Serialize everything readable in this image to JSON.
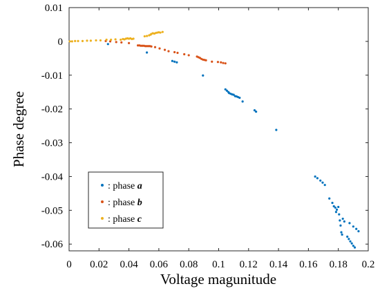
{
  "chart_data": {
    "type": "scatter",
    "xlabel": "Voltage magunitude",
    "ylabel": "Phase degree",
    "xlim": [
      0,
      0.2
    ],
    "ylim": [
      -0.062,
      0.01
    ],
    "xticks": [
      0,
      0.02,
      0.04,
      0.06,
      0.08,
      0.1,
      0.12,
      0.14,
      0.16,
      0.18,
      0.2
    ],
    "xtick_labels": [
      "0",
      "0.02",
      "0.04",
      "0.06",
      "0.08",
      "0.1",
      "0.12",
      "0.14",
      "0.16",
      "0.18",
      "0.2"
    ],
    "yticks": [
      0.01,
      0,
      -0.01,
      -0.02,
      -0.03,
      -0.04,
      -0.05,
      -0.06
    ],
    "ytick_labels": [
      "0.01",
      "0",
      "-0.01",
      "-0.02",
      "-0.03",
      "-0.04",
      "-0.05",
      "-0.06"
    ],
    "grid": false,
    "legend_position": "bottom-left",
    "series": [
      {
        "name": "phase a",
        "legend_prefix": ": phase ",
        "legend_letter": "a",
        "color": "#0072BD",
        "points": [
          [
            0.026,
            -0.0008
          ],
          [
            0.052,
            -0.0033
          ],
          [
            0.069,
            -0.0058
          ],
          [
            0.0705,
            -0.006
          ],
          [
            0.072,
            -0.0062
          ],
          [
            0.0895,
            -0.0101
          ],
          [
            0.1045,
            -0.0142
          ],
          [
            0.1055,
            -0.0146
          ],
          [
            0.1065,
            -0.015
          ],
          [
            0.107,
            -0.0153
          ],
          [
            0.108,
            -0.0155
          ],
          [
            0.109,
            -0.0157
          ],
          [
            0.11,
            -0.0158
          ],
          [
            0.111,
            -0.0162
          ],
          [
            0.112,
            -0.0163
          ],
          [
            0.113,
            -0.0165
          ],
          [
            0.114,
            -0.0167
          ],
          [
            0.116,
            -0.0178
          ],
          [
            0.124,
            -0.0204
          ],
          [
            0.125,
            -0.0208
          ],
          [
            0.1385,
            -0.0262
          ],
          [
            0.1645,
            -0.04
          ],
          [
            0.166,
            -0.0405
          ],
          [
            0.168,
            -0.0412
          ],
          [
            0.1695,
            -0.0418
          ],
          [
            0.171,
            -0.0425
          ],
          [
            0.174,
            -0.0465
          ],
          [
            0.176,
            -0.0478
          ],
          [
            0.177,
            -0.0488
          ],
          [
            0.178,
            -0.0492
          ],
          [
            0.1785,
            -0.0505
          ],
          [
            0.179,
            -0.0498
          ],
          [
            0.18,
            -0.049
          ],
          [
            0.1805,
            -0.0512
          ],
          [
            0.181,
            -0.053
          ],
          [
            0.1815,
            -0.0545
          ],
          [
            0.182,
            -0.0565
          ],
          [
            0.1825,
            -0.0572
          ],
          [
            0.183,
            -0.0525
          ],
          [
            0.184,
            -0.0533
          ],
          [
            0.186,
            -0.0578
          ],
          [
            0.187,
            -0.0585
          ],
          [
            0.188,
            -0.0592
          ],
          [
            0.189,
            -0.0598
          ],
          [
            0.19,
            -0.0605
          ],
          [
            0.191,
            -0.061
          ],
          [
            0.1875,
            -0.0538
          ],
          [
            0.19,
            -0.0548
          ],
          [
            0.192,
            -0.0555
          ],
          [
            0.1935,
            -0.0562
          ]
        ]
      },
      {
        "name": "phase b",
        "legend_prefix": ": phase ",
        "legend_letter": "b",
        "color": "#D95319",
        "points": [
          [
            0.0245,
            0.0001
          ],
          [
            0.0275,
            0.0
          ],
          [
            0.0315,
            -0.0002
          ],
          [
            0.035,
            -0.0003
          ],
          [
            0.04,
            -0.0005
          ],
          [
            0.046,
            -0.0012
          ],
          [
            0.047,
            -0.0012
          ],
          [
            0.048,
            -0.0013
          ],
          [
            0.049,
            -0.0013
          ],
          [
            0.05,
            -0.0013
          ],
          [
            0.051,
            -0.0014
          ],
          [
            0.052,
            -0.0014
          ],
          [
            0.053,
            -0.0014
          ],
          [
            0.054,
            -0.0014
          ],
          [
            0.055,
            -0.0015
          ],
          [
            0.0575,
            -0.0017
          ],
          [
            0.0605,
            -0.0021
          ],
          [
            0.064,
            -0.0025
          ],
          [
            0.0665,
            -0.0029
          ],
          [
            0.0705,
            -0.0032
          ],
          [
            0.0725,
            -0.0034
          ],
          [
            0.077,
            -0.0038
          ],
          [
            0.08,
            -0.0041
          ],
          [
            0.0855,
            -0.0045
          ],
          [
            0.0865,
            -0.0047
          ],
          [
            0.0875,
            -0.0049
          ],
          [
            0.0885,
            -0.0052
          ],
          [
            0.0895,
            -0.0054
          ],
          [
            0.0905,
            -0.0055
          ],
          [
            0.0915,
            -0.0056
          ],
          [
            0.0955,
            -0.006
          ],
          [
            0.0995,
            -0.0061
          ],
          [
            0.1015,
            -0.0062
          ],
          [
            0.103,
            -0.0064
          ],
          [
            0.1045,
            -0.0065
          ]
        ]
      },
      {
        "name": "phase c",
        "legend_prefix": ": phase ",
        "legend_letter": "c",
        "color": "#EDB120",
        "points": [
          [
            0.0005,
            0.0
          ],
          [
            0.002,
            0.0
          ],
          [
            0.004,
            0.0001
          ],
          [
            0.006,
            0.0001
          ],
          [
            0.009,
            0.0001
          ],
          [
            0.012,
            0.0002
          ],
          [
            0.0145,
            0.0002
          ],
          [
            0.018,
            0.0003
          ],
          [
            0.021,
            0.0003
          ],
          [
            0.025,
            0.0005
          ],
          [
            0.028,
            0.0005
          ],
          [
            0.031,
            0.0006
          ],
          [
            0.0345,
            0.0005
          ],
          [
            0.036,
            0.0007
          ],
          [
            0.037,
            0.0006
          ],
          [
            0.038,
            0.0008
          ],
          [
            0.039,
            0.0009
          ],
          [
            0.04,
            0.0008
          ],
          [
            0.041,
            0.0009
          ],
          [
            0.042,
            0.0007
          ],
          [
            0.043,
            0.0008
          ],
          [
            0.0505,
            0.0015
          ],
          [
            0.052,
            0.0016
          ],
          [
            0.0535,
            0.0018
          ],
          [
            0.0545,
            0.002
          ],
          [
            0.055,
            0.0022
          ],
          [
            0.056,
            0.0024
          ],
          [
            0.057,
            0.0023
          ],
          [
            0.058,
            0.0025
          ],
          [
            0.059,
            0.0026
          ],
          [
            0.06,
            0.0027
          ],
          [
            0.061,
            0.0026
          ],
          [
            0.0625,
            0.0028
          ]
        ]
      }
    ]
  }
}
